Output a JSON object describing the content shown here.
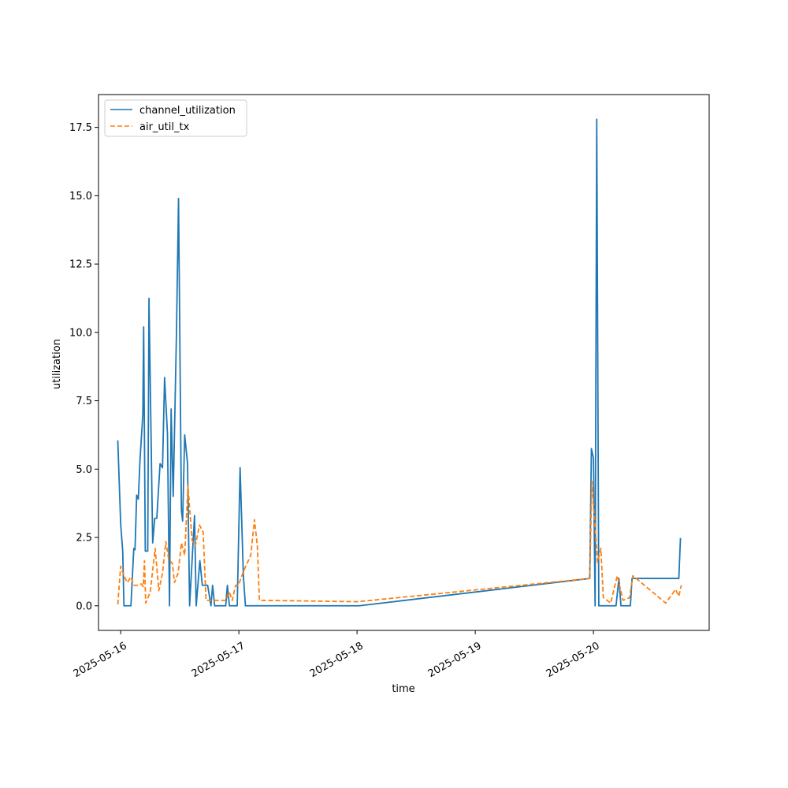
{
  "chart_data": {
    "type": "line",
    "title": "",
    "xlabel": "time",
    "ylabel": "utilization",
    "x_ticks": [
      "2025-05-16",
      "2025-05-17",
      "2025-05-18",
      "2025-05-19",
      "2025-05-20"
    ],
    "y_ticks": [
      "0.0",
      "2.5",
      "5.0",
      "7.5",
      "10.0",
      "12.5",
      "15.0",
      "17.5"
    ],
    "ylim": [
      -0.9,
      18.7
    ],
    "xlim": [
      "2025-05-15 19:30",
      "2025-05-20 23:30"
    ],
    "grid": false,
    "legend": "upper-left",
    "series": [
      {
        "name": "channel_utilization",
        "color": "#1f77b4",
        "dash": "solid",
        "points": [
          [
            "2025-05-15 23:25",
            6.05
          ],
          [
            "2025-05-16 00:00",
            3.0
          ],
          [
            "2025-05-16 00:25",
            2.0
          ],
          [
            "2025-05-16 00:40",
            0.0
          ],
          [
            "2025-05-16 02:05",
            0.0
          ],
          [
            "2025-05-16 02:40",
            2.1
          ],
          [
            "2025-05-16 02:55",
            2.05
          ],
          [
            "2025-05-16 03:15",
            4.05
          ],
          [
            "2025-05-16 03:35",
            3.9
          ],
          [
            "2025-05-16 03:55",
            5.3
          ],
          [
            "2025-05-16 04:30",
            7.0
          ],
          [
            "2025-05-16 04:40",
            10.2
          ],
          [
            "2025-05-16 05:00",
            2.0
          ],
          [
            "2025-05-16 05:30",
            2.0
          ],
          [
            "2025-05-16 05:45",
            11.25
          ],
          [
            "2025-05-16 06:30",
            2.3
          ],
          [
            "2025-05-16 06:55",
            3.2
          ],
          [
            "2025-05-16 07:20",
            3.2
          ],
          [
            "2025-05-16 08:00",
            5.2
          ],
          [
            "2025-05-16 08:30",
            5.05
          ],
          [
            "2025-05-16 08:55",
            8.35
          ],
          [
            "2025-05-16 09:30",
            6.3
          ],
          [
            "2025-05-16 09:55",
            0.0
          ],
          [
            "2025-05-16 10:15",
            7.2
          ],
          [
            "2025-05-16 10:40",
            4.0
          ],
          [
            "2025-05-16 11:20",
            10.0
          ],
          [
            "2025-05-16 11:45",
            14.9
          ],
          [
            "2025-05-16 12:20",
            3.5
          ],
          [
            "2025-05-16 12:35",
            3.1
          ],
          [
            "2025-05-16 13:00",
            6.25
          ],
          [
            "2025-05-16 13:35",
            5.2
          ],
          [
            "2025-05-16 14:00",
            0.0
          ],
          [
            "2025-05-16 15:00",
            3.3
          ],
          [
            "2025-05-16 15:20",
            0.0
          ],
          [
            "2025-05-16 16:05",
            1.65
          ],
          [
            "2025-05-16 16:35",
            0.75
          ],
          [
            "2025-05-16 17:40",
            0.75
          ],
          [
            "2025-05-16 18:20",
            0.0
          ],
          [
            "2025-05-16 18:40",
            0.75
          ],
          [
            "2025-05-16 19:05",
            0.0
          ],
          [
            "2025-05-16 21:20",
            0.0
          ],
          [
            "2025-05-16 21:40",
            0.75
          ],
          [
            "2025-05-16 22:05",
            0.0
          ],
          [
            "2025-05-16 23:40",
            0.0
          ],
          [
            "2025-05-17 00:15",
            5.05
          ],
          [
            "2025-05-17 00:55",
            1.1
          ],
          [
            "2025-05-17 01:20",
            0.0
          ],
          [
            "2025-05-18 00:25",
            0.0
          ],
          [
            "2025-05-19 23:15",
            1.0
          ],
          [
            "2025-05-19 23:35",
            5.75
          ],
          [
            "2025-05-20 00:00",
            5.4
          ],
          [
            "2025-05-20 00:20",
            0.0
          ],
          [
            "2025-05-20 00:40",
            17.8
          ],
          [
            "2025-05-20 01:05",
            0.0
          ],
          [
            "2025-05-20 04:35",
            0.0
          ],
          [
            "2025-05-20 05:10",
            1.0
          ],
          [
            "2025-05-20 05:35",
            0.0
          ],
          [
            "2025-05-20 07:30",
            0.0
          ],
          [
            "2025-05-20 07:50",
            1.0
          ],
          [
            "2025-05-20 17:20",
            1.0
          ],
          [
            "2025-05-20 17:40",
            2.48
          ]
        ]
      },
      {
        "name": "air_util_tx",
        "color": "#ff7f0e",
        "dash": "dashed",
        "points": [
          [
            "2025-05-15 23:25",
            0.05
          ],
          [
            "2025-05-16 00:00",
            1.45
          ],
          [
            "2025-05-16 00:40",
            1.1
          ],
          [
            "2025-05-16 01:20",
            0.85
          ],
          [
            "2025-05-16 02:05",
            1.05
          ],
          [
            "2025-05-16 02:40",
            0.75
          ],
          [
            "2025-05-16 03:40",
            0.75
          ],
          [
            "2025-05-16 04:10",
            0.8
          ],
          [
            "2025-05-16 04:35",
            0.7
          ],
          [
            "2025-05-16 04:50",
            1.65
          ],
          [
            "2025-05-16 05:05",
            0.1
          ],
          [
            "2025-05-16 06:00",
            0.5
          ],
          [
            "2025-05-16 07:00",
            2.1
          ],
          [
            "2025-05-16 07:45",
            0.55
          ],
          [
            "2025-05-16 08:30",
            1.2
          ],
          [
            "2025-05-16 09:10",
            2.35
          ],
          [
            "2025-05-16 09:45",
            1.7
          ],
          [
            "2025-05-16 10:30",
            1.55
          ],
          [
            "2025-05-16 10:55",
            0.85
          ],
          [
            "2025-05-16 11:40",
            1.2
          ],
          [
            "2025-05-16 12:20",
            2.3
          ],
          [
            "2025-05-16 13:00",
            1.85
          ],
          [
            "2025-05-16 13:40",
            4.4
          ],
          [
            "2025-05-16 14:30",
            2.4
          ],
          [
            "2025-05-16 15:10",
            2.2
          ],
          [
            "2025-05-16 16:00",
            2.95
          ],
          [
            "2025-05-16 16:45",
            2.7
          ],
          [
            "2025-05-16 17:20",
            0.2
          ],
          [
            "2025-05-16 18:30",
            0.2
          ],
          [
            "2025-05-16 21:20",
            0.2
          ],
          [
            "2025-05-16 22:05",
            0.5
          ],
          [
            "2025-05-16 22:40",
            0.2
          ],
          [
            "2025-05-16 23:20",
            0.75
          ],
          [
            "2025-05-16 23:55",
            0.75
          ],
          [
            "2025-05-17 00:55",
            1.25
          ],
          [
            "2025-05-17 02:25",
            1.85
          ],
          [
            "2025-05-17 03:10",
            3.15
          ],
          [
            "2025-05-17 03:45",
            2.2
          ],
          [
            "2025-05-17 04:10",
            0.2
          ],
          [
            "2025-05-18 00:10",
            0.15
          ],
          [
            "2025-05-19 23:15",
            1.0
          ],
          [
            "2025-05-19 23:40",
            4.55
          ],
          [
            "2025-05-20 00:50",
            1.6
          ],
          [
            "2025-05-20 01:30",
            2.1
          ],
          [
            "2025-05-20 02:00",
            0.3
          ],
          [
            "2025-05-20 03:30",
            0.1
          ],
          [
            "2025-05-20 04:50",
            1.1
          ],
          [
            "2025-05-20 06:00",
            0.2
          ],
          [
            "2025-05-20 07:20",
            0.3
          ],
          [
            "2025-05-20 08:00",
            1.1
          ],
          [
            "2025-05-20 09:20",
            0.9
          ],
          [
            "2025-05-20 14:40",
            0.1
          ],
          [
            "2025-05-20 16:40",
            0.6
          ],
          [
            "2025-05-20 17:20",
            0.35
          ],
          [
            "2025-05-20 17:50",
            0.75
          ]
        ]
      }
    ]
  }
}
